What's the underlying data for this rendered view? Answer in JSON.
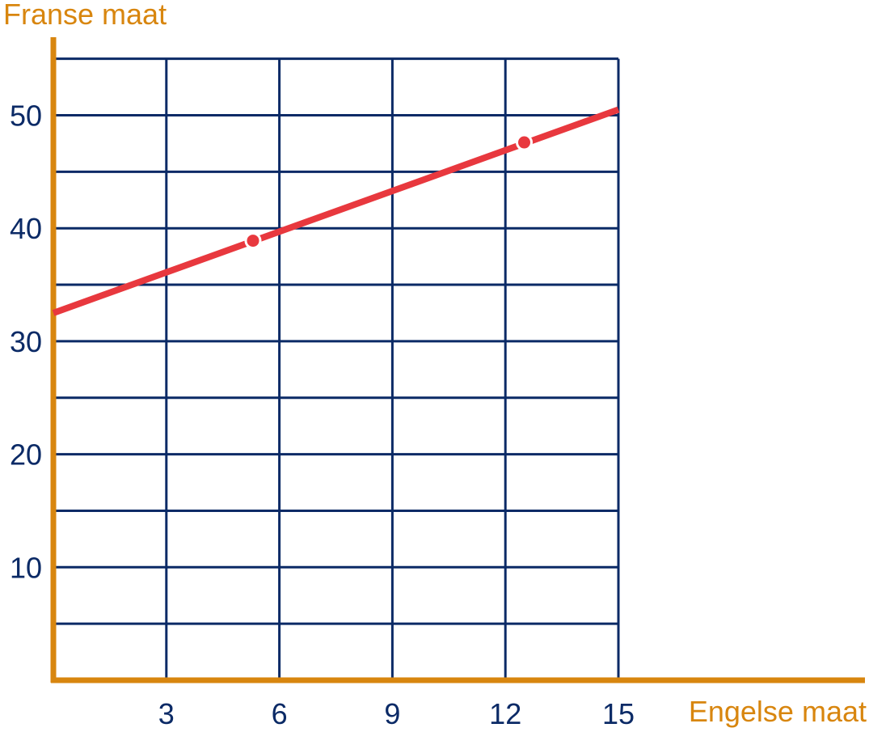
{
  "chart_data": {
    "type": "line",
    "title": "",
    "xlabel": "Engelse maat",
    "ylabel": "Franse maat",
    "xlim": [
      0,
      15
    ],
    "ylim": [
      0,
      55
    ],
    "x_ticks": [
      3,
      6,
      9,
      12,
      15
    ],
    "y_ticks": [
      10,
      20,
      30,
      40,
      50
    ],
    "grid": true,
    "x_grid_step": 3,
    "y_grid_step": 5,
    "series": [
      {
        "x": [
          0,
          15
        ],
        "y": [
          32.5,
          50.5
        ],
        "markers": [
          {
            "x": 5.3,
            "y": 38.9
          },
          {
            "x": 12.5,
            "y": 47.6
          }
        ]
      }
    ],
    "colors": {
      "axis": "#d8860f",
      "grid": "#0b2a66",
      "line": "#e8383e"
    }
  }
}
